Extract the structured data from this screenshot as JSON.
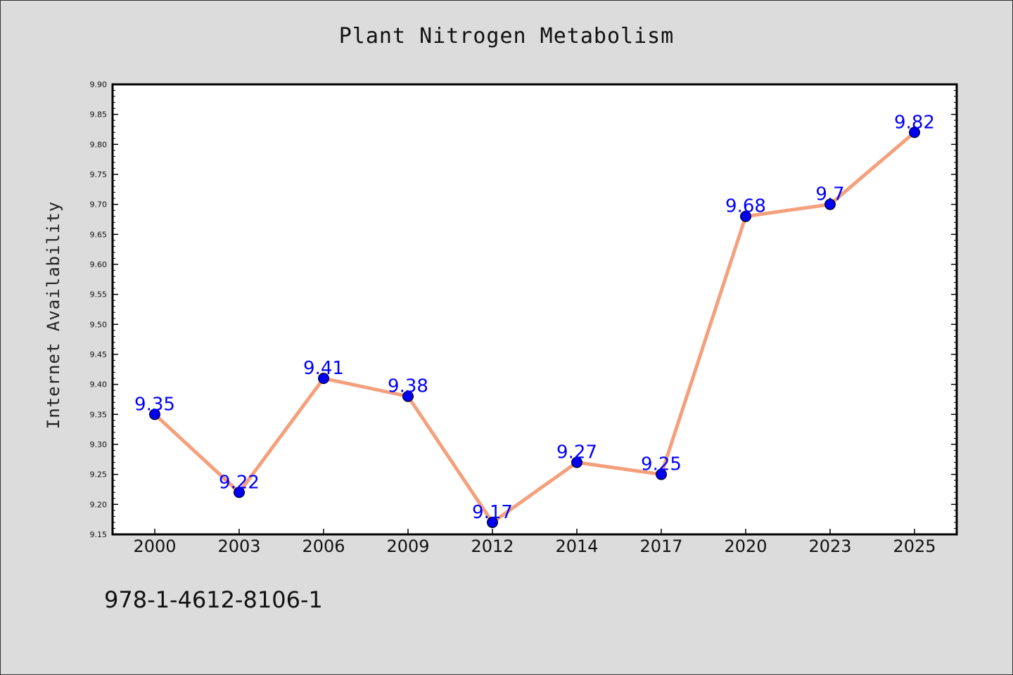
{
  "chart_data": {
    "type": "line",
    "title": "Plant Nitrogen Metabolism",
    "ylabel": "Internet Availability",
    "xlabel": "",
    "categories": [
      "2000",
      "2003",
      "2006",
      "2009",
      "2012",
      "2014",
      "2017",
      "2020",
      "2023",
      "2025"
    ],
    "values": [
      9.35,
      9.22,
      9.41,
      9.38,
      9.17,
      9.27,
      9.25,
      9.68,
      9.7,
      9.82
    ],
    "data_labels": [
      "9.35",
      "9.22",
      "9.41",
      "9.38",
      "9.17",
      "9.27",
      "9.25",
      "9.68",
      "9.7",
      "9.82"
    ],
    "ylim": [
      9.15,
      9.9
    ],
    "yticks": [
      "9.15",
      "9.20",
      "9.25",
      "9.30",
      "9.35",
      "9.40",
      "9.45",
      "9.50",
      "9.55",
      "9.60",
      "9.65",
      "9.70",
      "9.75",
      "9.80",
      "9.85",
      "9.90"
    ],
    "grid": false,
    "line_color": "#f4a07c",
    "marker_color": "#0000ee",
    "label_color": "#0000ff"
  },
  "footer": {
    "code": "978-1-4612-8106-1"
  }
}
